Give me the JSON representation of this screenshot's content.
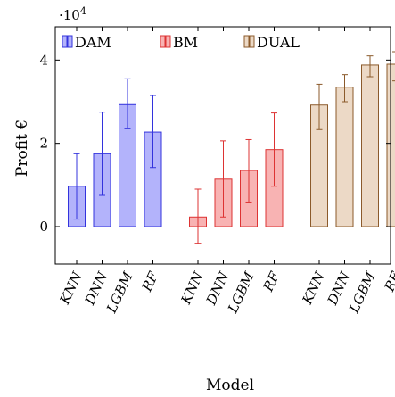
{
  "chart_data": {
    "type": "bar",
    "title": "",
    "xlabel": "Model",
    "ylabel": "Profit €",
    "y_multiplier_label": "·10",
    "y_multiplier_exp": "4",
    "ylim": [
      -9000,
      48000
    ],
    "yticks": [
      {
        "value": 0,
        "label": "0"
      },
      {
        "value": 20000,
        "label": "2"
      },
      {
        "value": 40000,
        "label": "4"
      }
    ],
    "legend_position": "top",
    "categories": [
      "KNN",
      "DNN",
      "LGBM",
      "RF"
    ],
    "series": [
      {
        "name": "DAM",
        "fill": "#b3b3fb",
        "stroke": "#3333dd",
        "values": [
          9700,
          17500,
          29300,
          22700
        ],
        "err_low": [
          1800,
          7500,
          23500,
          14200
        ],
        "err_high": [
          17500,
          27500,
          35500,
          31500
        ]
      },
      {
        "name": "BM",
        "fill": "#f8b3b3",
        "stroke": "#dd3333",
        "values": [
          2300,
          11400,
          13500,
          18500
        ],
        "err_low": [
          -4000,
          2300,
          5900,
          9700
        ],
        "err_high": [
          9000,
          20600,
          20900,
          27300
        ]
      },
      {
        "name": "DUAL",
        "fill": "#ecd9c6",
        "stroke": "#8b5a2b",
        "values": [
          29200,
          33500,
          38800,
          39000
        ],
        "err_low": [
          23300,
          30000,
          36000,
          35000
        ],
        "err_high": [
          34200,
          36500,
          41000,
          42000
        ]
      }
    ]
  }
}
